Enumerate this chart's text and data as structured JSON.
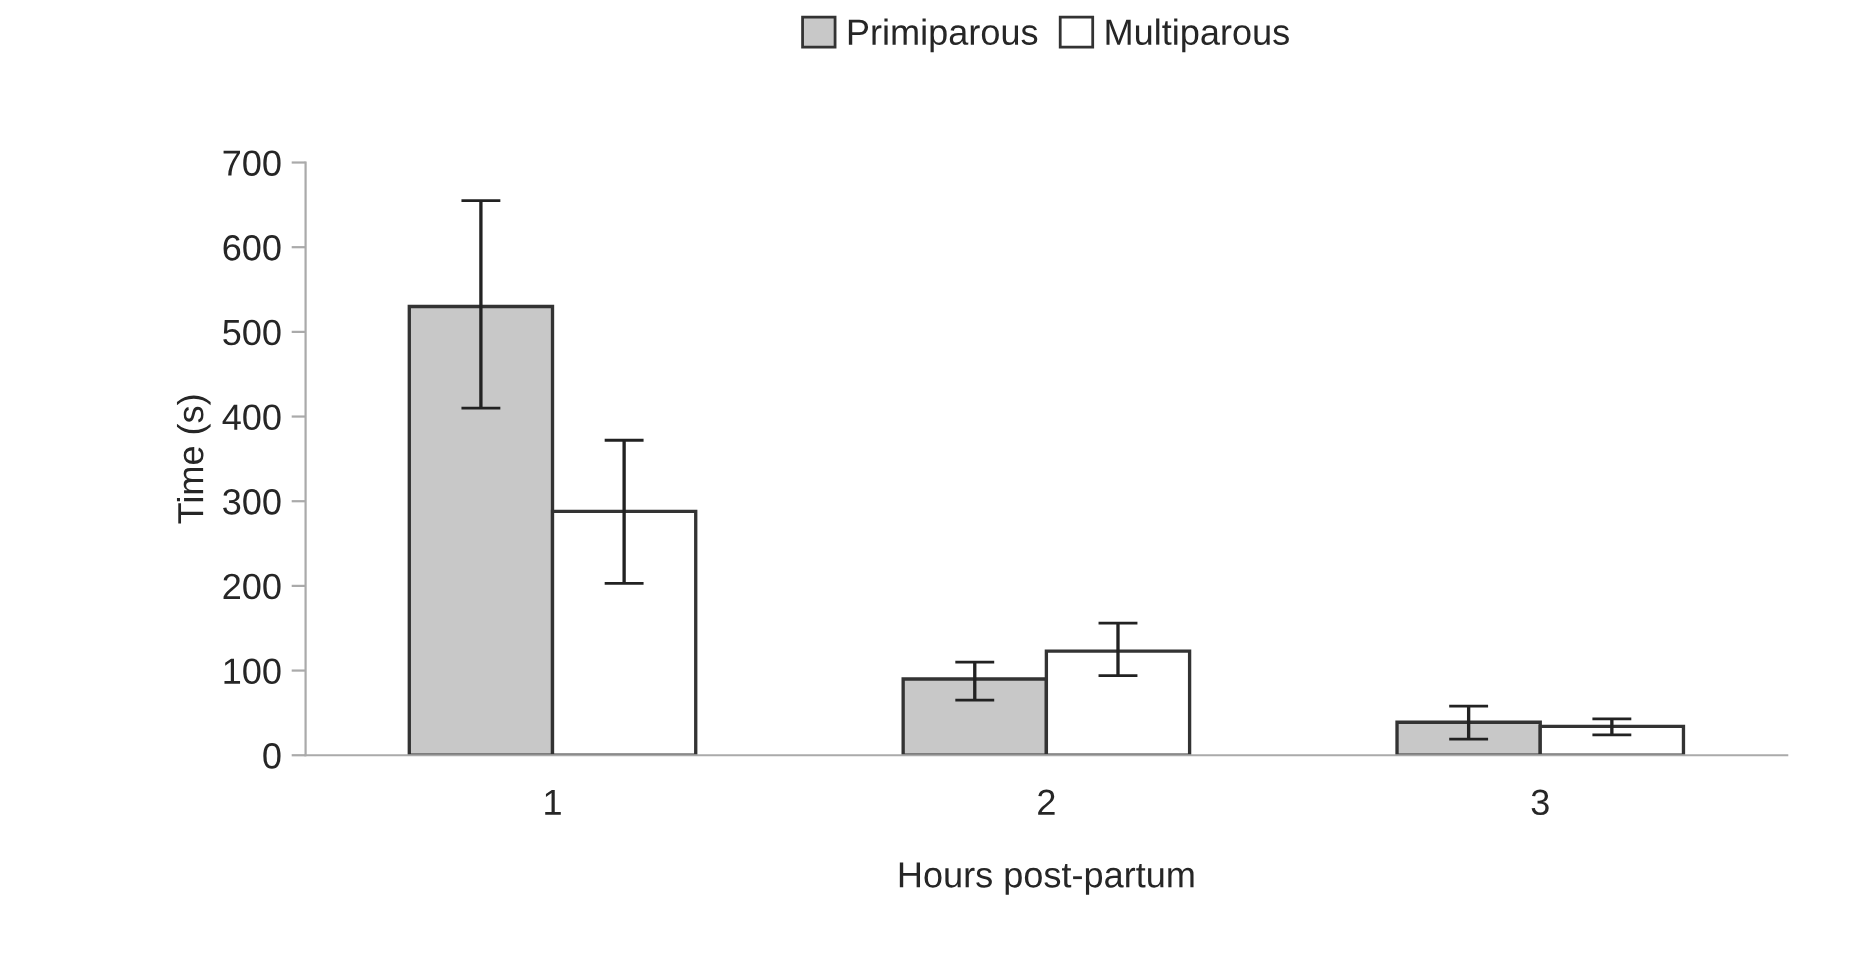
{
  "chart_data": {
    "type": "bar",
    "xlabel": "Hours post-partum",
    "ylabel": "Time (s)",
    "categories": [
      "1",
      "2",
      "3"
    ],
    "series": [
      {
        "name": "Primiparous",
        "color": "#c8c8c8",
        "values": [
          530,
          90,
          39
        ],
        "errors": [
          [
            410,
            655
          ],
          [
            65,
            110
          ],
          [
            19,
            58
          ]
        ]
      },
      {
        "name": "Multiparous",
        "color": "#ffffff",
        "values": [
          288,
          123,
          34
        ],
        "errors": [
          [
            203,
            372
          ],
          [
            94,
            156
          ],
          [
            24,
            43
          ]
        ]
      }
    ],
    "ylim": [
      0,
      700
    ],
    "yticks": [
      0,
      100,
      200,
      300,
      400,
      500,
      600,
      700
    ],
    "grid": false,
    "legend": "top"
  }
}
